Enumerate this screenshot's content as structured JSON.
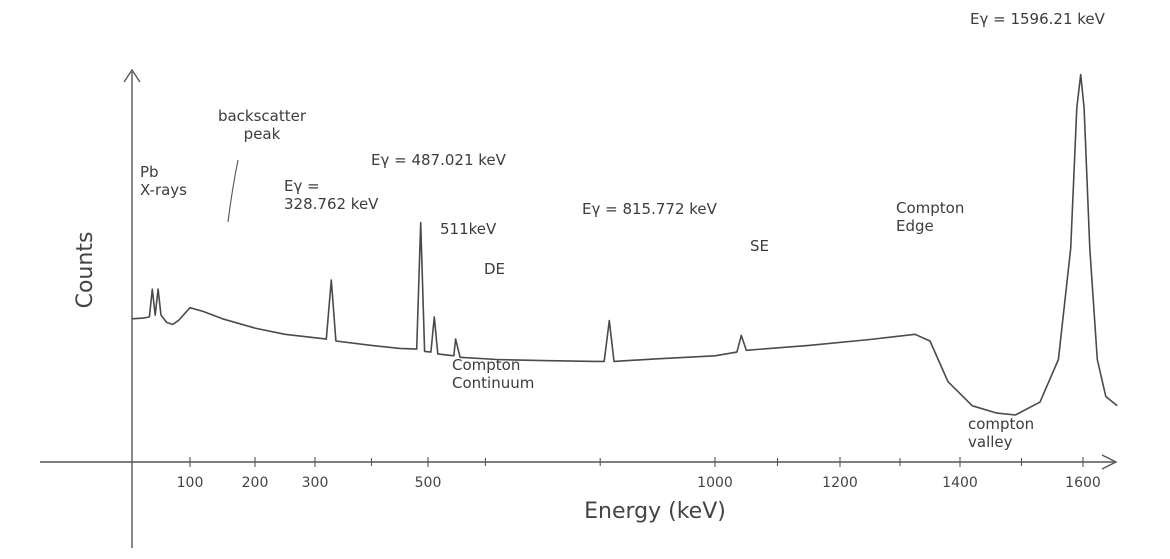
{
  "chart_data": {
    "type": "line",
    "xlabel": "Energy (keV)",
    "ylabel": "Counts",
    "x_ticks": [
      100,
      200,
      300,
      500,
      1000,
      1200,
      1400,
      1600
    ],
    "xlim": [
      0,
      1700
    ],
    "ylim": [
      0,
      10
    ],
    "grid": false,
    "series": [
      {
        "points": [
          [
            0,
            2.6
          ],
          [
            20,
            2.62
          ],
          [
            30,
            2.65
          ],
          [
            35,
            3.4
          ],
          [
            40,
            2.7
          ],
          [
            45,
            3.4
          ],
          [
            50,
            2.7
          ],
          [
            60,
            2.5
          ],
          [
            70,
            2.45
          ],
          [
            80,
            2.55
          ],
          [
            100,
            2.9
          ],
          [
            120,
            2.8
          ],
          [
            150,
            2.6
          ],
          [
            200,
            2.35
          ],
          [
            250,
            2.18
          ],
          [
            320,
            2.05
          ],
          [
            328.762,
            3.65
          ],
          [
            337,
            2.0
          ],
          [
            400,
            1.88
          ],
          [
            450,
            1.8
          ],
          [
            480,
            1.78
          ],
          [
            487.021,
            5.2
          ],
          [
            494,
            1.72
          ],
          [
            505,
            1.7
          ],
          [
            511,
            2.65
          ],
          [
            517,
            1.65
          ],
          [
            545,
            1.6
          ],
          [
            548,
            2.05
          ],
          [
            556,
            1.56
          ],
          [
            620,
            1.5
          ],
          [
            700,
            1.47
          ],
          [
            790,
            1.45
          ],
          [
            807,
            1.45
          ],
          [
            815.772,
            2.55
          ],
          [
            824,
            1.45
          ],
          [
            900,
            1.52
          ],
          [
            1000,
            1.6
          ],
          [
            1035,
            1.7
          ],
          [
            1042,
            2.15
          ],
          [
            1050,
            1.75
          ],
          [
            1150,
            1.88
          ],
          [
            1250,
            2.04
          ],
          [
            1325,
            2.18
          ],
          [
            1350,
            2.0
          ],
          [
            1380,
            0.9
          ],
          [
            1420,
            0.25
          ],
          [
            1460,
            0.05
          ],
          [
            1490,
            0.0
          ],
          [
            1530,
            0.35
          ],
          [
            1560,
            1.5
          ],
          [
            1580,
            4.5
          ],
          [
            1590,
            8.3
          ],
          [
            1596.21,
            9.2
          ],
          [
            1602,
            8.3
          ],
          [
            1612,
            4.5
          ],
          [
            1625,
            1.5
          ],
          [
            1640,
            0.5
          ],
          [
            1660,
            0.25
          ]
        ]
      }
    ],
    "annotations": [
      {
        "lines": [
          "Pb",
          "X-rays"
        ],
        "x": 40
      },
      {
        "lines": [
          "backscatter",
          "peak"
        ],
        "x": 130
      },
      {
        "lines": [
          "Eγ =",
          "328.762 keV"
        ],
        "x": 328.762
      },
      {
        "lines": [
          "Eγ = 487.021 keV"
        ],
        "x": 487.021
      },
      {
        "lines": [
          "511keV"
        ],
        "x": 511
      },
      {
        "lines": [
          "DE"
        ],
        "x": 548
      },
      {
        "lines": [
          "Eγ = 815.772 keV"
        ],
        "x": 815.772
      },
      {
        "lines": [
          "SE"
        ],
        "x": 1042
      },
      {
        "lines": [
          "Compton",
          "Edge"
        ],
        "x": 1325
      },
      {
        "lines": [
          "Compton",
          "Continuum"
        ],
        "x": 700
      },
      {
        "lines": [
          "compton",
          "valley"
        ],
        "x": 1490
      },
      {
        "lines": [
          "Eγ = 1596.21 keV"
        ],
        "x": 1596.21
      }
    ]
  }
}
